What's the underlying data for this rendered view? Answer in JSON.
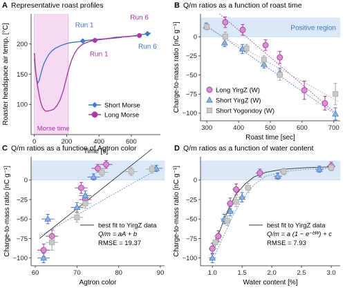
{
  "colors": {
    "long": "#a83aa0",
    "long_fill": "#d78fd0",
    "short": "#3f78c4",
    "short_fill": "#8fb0e0",
    "yogo": "#a8a8a8",
    "yogo_fill": "#c9c9c9",
    "band": "#dbe8f8",
    "morse_band": "#f6d9f2"
  },
  "chart_data": [
    {
      "id": "A",
      "type": "line",
      "panel_label": "A",
      "title": "Representative roast profiles",
      "xlabel": "Time [s]",
      "ylabel": "Roaster headspace air temp. [°C]",
      "xlim": [
        -20,
        780
      ],
      "ylim": [
        50,
        250
      ],
      "xticks": [
        0,
        200,
        400,
        600
      ],
      "yticks": [
        100,
        150,
        200
      ],
      "morse_region": {
        "x": [
          0,
          210
        ],
        "label": "Morse time"
      },
      "legend": {
        "position": "bottom-right",
        "entries": [
          "Short Morse",
          "Long Morse"
        ]
      },
      "annotations": [
        {
          "text": "Run 1",
          "x": 310,
          "y": 231,
          "color": "short"
        },
        {
          "text": "Run 1",
          "x": 400,
          "y": 183,
          "color": "long"
        },
        {
          "text": "Run 6",
          "x": 650,
          "y": 244,
          "color": "long"
        },
        {
          "text": "Run 6",
          "x": 700,
          "y": 196,
          "color": "short"
        }
      ],
      "series": [
        {
          "name": "Short Morse",
          "color": "short",
          "x": [
            0,
            5,
            10,
            15,
            20,
            30,
            40,
            50,
            60,
            75,
            90,
            110,
            130,
            160,
            190,
            220,
            250,
            280,
            300,
            330,
            360,
            400,
            450,
            500,
            550,
            600,
            650,
            700,
            720
          ],
          "y": [
            175,
            162,
            150,
            141,
            135,
            140,
            150,
            160,
            168,
            176,
            183,
            189,
            193,
            197,
            200,
            202,
            203,
            204,
            205,
            206,
            207,
            208,
            209,
            211,
            212,
            213,
            215,
            217,
            218
          ],
          "markers_x": [
            300,
            700
          ],
          "markers_y": [
            205,
            217
          ]
        },
        {
          "name": "Long Morse",
          "color": "long",
          "x": [
            0,
            5,
            10,
            20,
            30,
            40,
            50,
            60,
            70,
            80,
            100,
            120,
            140,
            160,
            180,
            200,
            215,
            230,
            250,
            270,
            290,
            310,
            330,
            350,
            375,
            400,
            450,
            500,
            550,
            600,
            650
          ],
          "y": [
            185,
            165,
            150,
            130,
            115,
            103,
            95,
            91,
            89,
            89,
            90,
            92,
            98,
            108,
            124,
            145,
            160,
            173,
            185,
            193,
            198,
            201,
            203,
            205,
            206,
            207,
            209,
            210,
            212,
            213,
            214
          ],
          "markers_x": [
            375,
            650
          ],
          "markers_y": [
            206,
            214
          ]
        }
      ]
    },
    {
      "id": "B",
      "type": "scatter",
      "panel_label": "B",
      "title": "Q/m ratios as a function of roast time",
      "xlabel": "Roast time [sec]",
      "ylabel": "Charge-to-mass ratio [nC g⁻¹]",
      "xlim": [
        280,
        720
      ],
      "ylim": [
        -110,
        30
      ],
      "xticks": [
        300,
        400,
        500,
        600,
        700
      ],
      "yticks": [
        0,
        -25,
        -50,
        -75,
        -100
      ],
      "band": {
        "y": [
          0,
          25
        ],
        "label": "Positive region"
      },
      "legend": {
        "position": "bottom-left",
        "entries": [
          "Long YirgZ (W)",
          "Short YirgZ (W)",
          "Short Yogondoy (W)"
        ]
      },
      "series": [
        {
          "name": "Long YirgZ (W)",
          "marker": "circle",
          "color": "long",
          "x": [
            358,
            413,
            485,
            530,
            607,
            672
          ],
          "y": [
            19,
            9,
            -11,
            -27,
            -70,
            -87
          ],
          "yerr": [
            7,
            7,
            7,
            8,
            12,
            9
          ],
          "fit": [
            [
              340,
              30
            ],
            [
              700,
              -98
            ]
          ]
        },
        {
          "name": "Short YirgZ (W)",
          "marker": "triangle",
          "color": "short",
          "x": [
            298,
            356,
            412,
            480,
            530,
            705
          ],
          "y": [
            14,
            -8,
            -16,
            -36,
            -47,
            -101
          ],
          "yerr": [
            4,
            5,
            6,
            5,
            6,
            8
          ],
          "fit": [
            [
              300,
              14
            ],
            [
              715,
              -104
            ]
          ]
        },
        {
          "name": "Short Yogondoy (W)",
          "marker": "square",
          "color": "yogo",
          "x": [
            300,
            358,
            425,
            480,
            530,
            705
          ],
          "y": [
            13,
            0,
            -15,
            -30,
            -50,
            -75
          ],
          "yerr": [
            4,
            6,
            5,
            5,
            7,
            14
          ],
          "fit": [
            [
              300,
              12
            ],
            [
              715,
              -85
            ]
          ]
        }
      ]
    },
    {
      "id": "C",
      "type": "scatter",
      "panel_label": "C",
      "title": "Q/m ratios as a function of Agtron color",
      "xlabel": "Agtron color",
      "ylabel": "Charge-to-mass ratio [nC g⁻¹]",
      "xlim": [
        59,
        91
      ],
      "ylim": [
        -110,
        30
      ],
      "xticks": [
        60,
        70,
        80,
        90
      ],
      "yticks": [
        0,
        -25,
        -50,
        -75,
        -100
      ],
      "band": {
        "y": [
          0,
          25
        ]
      },
      "legend": {
        "position": "bottom-right",
        "entries": [
          "best fit to YirgZ data"
        ]
      },
      "annotations": [
        "Q/m = aA + b",
        "RMSE = 19.37"
      ],
      "fit": [
        [
          61,
          -75
        ],
        [
          88,
          40
        ]
      ],
      "fit2": [
        [
          61,
          -72
        ],
        [
          88,
          10
        ]
      ],
      "series": [
        {
          "name": "Long YirgZ (W)",
          "marker": "circle",
          "color": "long",
          "x": [
            62,
            64,
            71,
            72,
            75,
            77
          ],
          "y": [
            -90,
            -72,
            -10,
            -25,
            15,
            20
          ],
          "xerr": [
            1.5,
            1.5,
            1.5,
            1.5,
            1.5,
            1.5
          ],
          "yerr": [
            8,
            8,
            7,
            7,
            5,
            5
          ]
        },
        {
          "name": "Short YirgZ (W)",
          "marker": "triangle",
          "color": "short",
          "x": [
            62,
            63,
            70,
            72,
            74,
            89
          ],
          "y": [
            -100,
            -50,
            -35,
            -20,
            4,
            15
          ],
          "xerr": [
            1.5,
            1.5,
            1.5,
            1.5,
            1.5,
            1.5
          ],
          "yerr": [
            6,
            6,
            6,
            6,
            4,
            4
          ]
        },
        {
          "name": "Short Yogondoy (W)",
          "marker": "square",
          "color": "yogo",
          "x": [
            64,
            70,
            72,
            76,
            83,
            88
          ],
          "y": [
            -80,
            -48,
            -30,
            10,
            11,
            14
          ],
          "xerr": [
            1.5,
            1.5,
            1.5,
            1.5,
            1.5,
            1.5
          ],
          "yerr": [
            10,
            6,
            6,
            5,
            5,
            5
          ]
        }
      ]
    },
    {
      "id": "D",
      "type": "scatter",
      "panel_label": "D",
      "title": "Q/m ratios as a function of water content",
      "xlabel": "Water content [%]",
      "ylabel": "Charge-to-mass ratio [nC g⁻¹]",
      "xlim": [
        0.8,
        3.15
      ],
      "ylim": [
        -110,
        30
      ],
      "xticks": [
        1.0,
        1.5,
        2.0,
        2.5,
        3.0
      ],
      "yticks": [
        0,
        -25,
        -50,
        -75,
        -100
      ],
      "band": {
        "y": [
          0,
          25
        ]
      },
      "legend": {
        "position": "bottom-right",
        "entries": [
          "best fit to YirgZ data"
        ]
      },
      "annotations": [
        "Q/m = a (1 − e⁻ᵇᵂ) + c",
        "RMSE = 7.93"
      ],
      "fit": [
        [
          1.0,
          -88
        ],
        [
          1.1,
          -70
        ],
        [
          1.2,
          -50
        ],
        [
          1.3,
          -32
        ],
        [
          1.4,
          -18
        ],
        [
          1.55,
          -5
        ],
        [
          1.7,
          4
        ],
        [
          1.9,
          10
        ],
        [
          2.2,
          14
        ],
        [
          2.6,
          16
        ],
        [
          3.05,
          17
        ]
      ],
      "fit2": [
        [
          1.05,
          -95
        ],
        [
          1.2,
          -70
        ],
        [
          1.35,
          -45
        ],
        [
          1.5,
          -25
        ],
        [
          1.7,
          -6
        ],
        [
          1.9,
          5
        ],
        [
          2.2,
          11
        ],
        [
          2.6,
          14
        ],
        [
          3.05,
          15
        ]
      ],
      "series": [
        {
          "name": "Long YirgZ (W)",
          "marker": "circle",
          "color": "long",
          "x": [
            1.0,
            1.1,
            1.3,
            1.4,
            1.8,
            3.0
          ],
          "y": [
            -88,
            -72,
            -30,
            -12,
            9,
            18
          ],
          "xerr": [
            0.06,
            0.06,
            0.06,
            0.06,
            0.07,
            0.07
          ],
          "yerr": [
            7,
            7,
            7,
            7,
            5,
            5
          ]
        },
        {
          "name": "Short YirgZ (W)",
          "marker": "triangle",
          "color": "short",
          "x": [
            1.0,
            1.2,
            1.3,
            1.5,
            2.1,
            2.8
          ],
          "y": [
            -100,
            -50,
            -40,
            -22,
            5,
            14
          ],
          "xerr": [
            0.06,
            0.06,
            0.06,
            0.06,
            0.07,
            0.07
          ],
          "yerr": [
            6,
            6,
            6,
            6,
            4,
            4
          ]
        },
        {
          "name": "Short Yogondoy (W)",
          "marker": "square",
          "color": "yogo",
          "x": [
            1.05,
            1.25,
            1.4,
            1.6,
            2.2,
            3.0
          ],
          "y": [
            -80,
            -52,
            -28,
            -10,
            11,
            16
          ],
          "xerr": [
            0.06,
            0.06,
            0.06,
            0.06,
            0.07,
            0.07
          ],
          "yerr": [
            8,
            6,
            6,
            6,
            4,
            4
          ]
        }
      ]
    }
  ]
}
